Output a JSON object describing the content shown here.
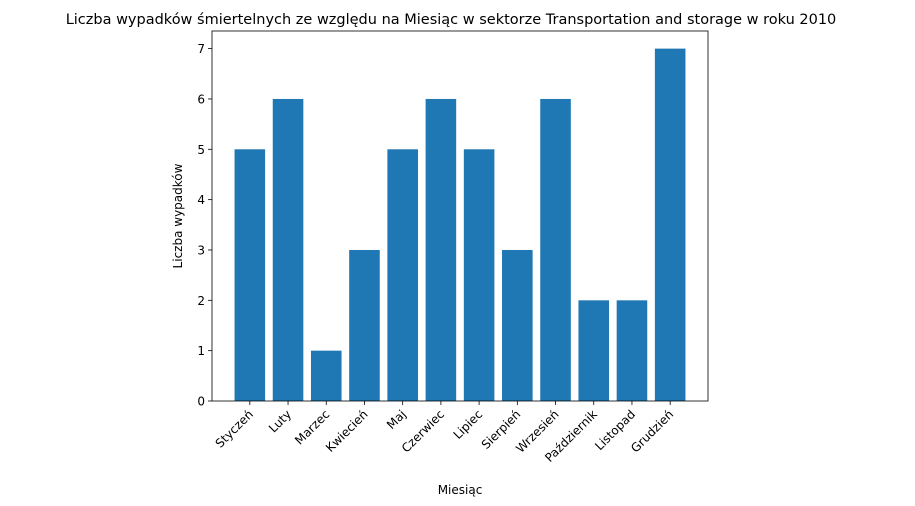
{
  "chart_data": {
    "type": "bar",
    "title": "Liczba wypadków śmiertelnych ze względu na Miesiąc w sektorze Transportation and storage  w roku 2010",
    "xlabel": "Miesiąc",
    "ylabel": "Liczba wypadków",
    "categories": [
      "Styczeń",
      "Luty",
      "Marzec",
      "Kwiecień",
      "Maj",
      "Czerwiec",
      "Lipiec",
      "Sierpień",
      "Wrzesień",
      "Październik",
      "Listopad",
      "Grudzień"
    ],
    "values": [
      5,
      6,
      1,
      3,
      5,
      6,
      5,
      3,
      6,
      2,
      2,
      7
    ],
    "ylim": [
      0,
      7.35
    ],
    "yticks": [
      0,
      1,
      2,
      3,
      4,
      5,
      6,
      7
    ],
    "bar_color": "#1f77b4",
    "grid": false,
    "legend": "none"
  }
}
